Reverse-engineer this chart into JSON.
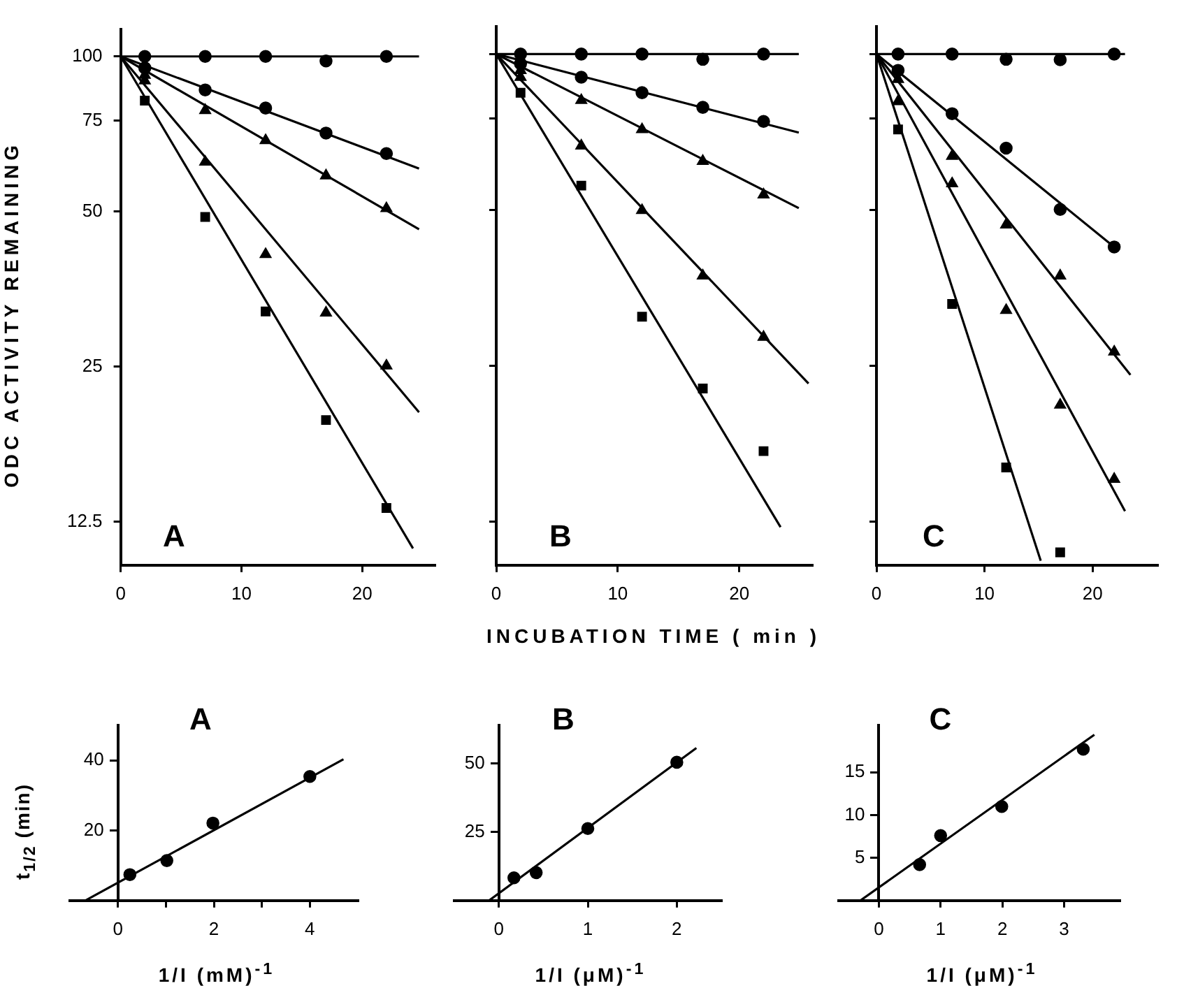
{
  "chart_data": [
    {
      "type": "scatter",
      "title": "A",
      "ylabel": "ODC ACTIVITY REMAINING",
      "log": "y",
      "xlim": [
        0,
        26
      ],
      "xticks": [
        0,
        10,
        20
      ],
      "ylim": [
        10.3,
        113
      ],
      "yticks": [
        100,
        75,
        50,
        25,
        12.5
      ],
      "grid": false,
      "series": [
        {
          "color": "#000000",
          "marker": "circle",
          "x": [
            2,
            7,
            12,
            17,
            22
          ],
          "values": [
            100,
            100,
            100,
            98,
            100
          ]
        },
        {
          "color": "#000000",
          "marker": "circle",
          "x": [
            2,
            7,
            12,
            17,
            22
          ],
          "values": [
            95,
            86.1,
            79.4,
            71,
            64.8
          ]
        },
        {
          "color": "#000000",
          "marker": "triangle",
          "x": [
            2,
            7,
            12,
            17,
            22
          ],
          "values": [
            92,
            78.6,
            68.7,
            58.7,
            50.7
          ]
        },
        {
          "color": "#000000",
          "marker": "triangle",
          "x": [
            2,
            7,
            12,
            17,
            22
          ],
          "values": [
            89.7,
            62.4,
            41.3,
            31.8,
            25.1
          ]
        },
        {
          "color": "#000000",
          "marker": "square",
          "x": [
            2,
            7,
            12,
            17,
            22
          ],
          "values": [
            82.1,
            48.8,
            32,
            19.7,
            13.3
          ]
        },
        {
          "type": "line",
          "color": "#000000",
          "marker": "none",
          "x": [
            0,
            24.7
          ],
          "values": [
            100,
            100
          ]
        },
        {
          "type": "line",
          "color": "#000000",
          "marker": "none",
          "x": [
            0,
            24.7
          ],
          "values": [
            100,
            60.6
          ]
        },
        {
          "type": "line",
          "color": "#000000",
          "marker": "none",
          "x": [
            0,
            24.7
          ],
          "values": [
            100,
            46.2
          ]
        },
        {
          "type": "line",
          "color": "#000000",
          "marker": "none",
          "x": [
            0,
            24.7
          ],
          "values": [
            100,
            20.4
          ]
        },
        {
          "type": "line",
          "color": "#000000",
          "marker": "none",
          "x": [
            0,
            24.2
          ],
          "values": [
            100,
            11.1
          ]
        }
      ]
    },
    {
      "type": "scatter",
      "title": "B",
      "xlabel": "INCUBATION TIME ( min )",
      "log": "y",
      "xlim": [
        0,
        26
      ],
      "xticks": [
        0,
        10,
        20
      ],
      "ylim": [
        10.3,
        113
      ],
      "yticks": [
        100,
        75,
        50,
        25,
        12.5
      ],
      "tick_labels": "x",
      "grid": false,
      "series": [
        {
          "color": "#000000",
          "marker": "circle",
          "x": [
            2,
            7,
            12,
            17,
            22
          ],
          "values": [
            100,
            100,
            100,
            97.7,
            100
          ]
        },
        {
          "color": "#000000",
          "marker": "circle",
          "x": [
            2,
            7,
            12,
            17,
            22
          ],
          "values": [
            95.8,
            90.2,
            84.2,
            78.9,
            74.1
          ]
        },
        {
          "color": "#000000",
          "marker": "triangle",
          "x": [
            2,
            7,
            12,
            17,
            22
          ],
          "values": [
            93,
            81.4,
            71.5,
            62.1,
            53.5
          ]
        },
        {
          "color": "#000000",
          "marker": "triangle",
          "x": [
            2,
            7,
            12,
            17,
            22
          ],
          "values": [
            90.2,
            66.5,
            49.9,
            37.3,
            28.4
          ]
        },
        {
          "color": "#000000",
          "marker": "square",
          "x": [
            2,
            7,
            12,
            17,
            22
          ],
          "values": [
            84.2,
            55.7,
            31.1,
            22.6,
            17.1
          ]
        },
        {
          "type": "line",
          "color": "#000000",
          "marker": "none",
          "x": [
            0,
            24.9
          ],
          "values": [
            100,
            100
          ]
        },
        {
          "type": "line",
          "color": "#000000",
          "marker": "none",
          "x": [
            0,
            24.9
          ],
          "values": [
            100,
            70.5
          ]
        },
        {
          "type": "line",
          "color": "#000000",
          "marker": "none",
          "x": [
            0,
            24.9
          ],
          "values": [
            100,
            50.4
          ]
        },
        {
          "type": "line",
          "color": "#000000",
          "marker": "none",
          "x": [
            0,
            25.7
          ],
          "values": [
            100,
            23.1
          ]
        },
        {
          "type": "line",
          "color": "#000000",
          "marker": "none",
          "x": [
            0,
            23.4
          ],
          "values": [
            100,
            12.2
          ]
        }
      ]
    },
    {
      "type": "scatter",
      "title": "C",
      "log": "y",
      "xlim": [
        0,
        26
      ],
      "xticks": [
        0,
        10,
        20
      ],
      "ylim": [
        10.3,
        113
      ],
      "yticks": [
        100,
        75,
        50,
        25,
        12.5
      ],
      "tick_labels": "x",
      "grid": false,
      "series": [
        {
          "color": "#000000",
          "marker": "circle",
          "x": [
            2,
            7,
            12,
            17,
            22
          ],
          "values": [
            100,
            100,
            97.7,
            97.5,
            100
          ]
        },
        {
          "color": "#000000",
          "marker": "circle",
          "x": [
            2,
            7,
            12,
            17,
            22
          ],
          "values": [
            93,
            76.7,
            65.8,
            50.1,
            42.4
          ]
        },
        {
          "color": "#000000",
          "marker": "triangle",
          "x": [
            2,
            7,
            12,
            17,
            22
          ],
          "values": [
            89.4,
            63.5,
            46.8,
            37.3,
            26.6
          ]
        },
        {
          "color": "#000000",
          "marker": "triangle",
          "x": [
            2,
            7,
            12,
            17,
            22
          ],
          "values": [
            81,
            56.2,
            32,
            21,
            15.1
          ]
        },
        {
          "color": "#000000",
          "marker": "square",
          "x": [
            2,
            7,
            12,
            17
          ],
          "values": [
            71.5,
            32.9,
            15.9,
            10.9
          ]
        },
        {
          "type": "line",
          "color": "#000000",
          "marker": "none",
          "x": [
            0,
            23
          ],
          "values": [
            100,
            100
          ]
        },
        {
          "type": "line",
          "color": "#000000",
          "marker": "none",
          "x": [
            0,
            22
          ],
          "values": [
            100,
            42.4
          ]
        },
        {
          "type": "line",
          "color": "#000000",
          "marker": "none",
          "x": [
            0,
            23.5
          ],
          "values": [
            100,
            24
          ]
        },
        {
          "type": "line",
          "color": "#000000",
          "marker": "none",
          "x": [
            0,
            23
          ],
          "values": [
            100,
            13.1
          ]
        },
        {
          "type": "line",
          "color": "#000000",
          "marker": "none",
          "x": [
            0,
            15.2
          ],
          "values": [
            100,
            10.5
          ]
        }
      ]
    },
    {
      "type": "scatter",
      "title": "A",
      "ylabel": "t$_{1/2}$ (min)",
      "xlabel": "1/I (mM)$^{-1}$",
      "xlim": [
        -1,
        5
      ],
      "xticks": [
        0,
        {
          "value": 1,
          "label": null
        },
        2,
        {
          "value": 3,
          "label": null
        },
        4
      ],
      "ylim": [
        0,
        50
      ],
      "yticks": [
        20,
        40
      ],
      "grid": false,
      "series": [
        {
          "color": "#000000",
          "marker": "circle",
          "x": [
            0.25,
            1.02,
            1.98,
            4
          ],
          "values": [
            7.4,
            11.4,
            22.1,
            35.4
          ]
        },
        {
          "type": "line",
          "color": "#000000",
          "marker": "none",
          "x": [
            -0.68,
            4.7
          ],
          "values": [
            0,
            40.3
          ]
        }
      ]
    },
    {
      "type": "scatter",
      "title": "B",
      "xlabel": "1/I (μM)$^{-1}$",
      "xlim": [
        -0.5,
        2.5
      ],
      "xticks": [
        0,
        1,
        2
      ],
      "ylim": [
        0,
        64
      ],
      "yticks": [
        25,
        50
      ],
      "grid": false,
      "series": [
        {
          "color": "#000000",
          "marker": "circle",
          "x": [
            0.17,
            0.42,
            1,
            2
          ],
          "values": [
            8.3,
            10.2,
            26.3,
            50.5
          ]
        },
        {
          "type": "line",
          "color": "#000000",
          "marker": "none",
          "x": [
            -0.11,
            2.22
          ],
          "values": [
            0,
            55.7
          ]
        }
      ]
    },
    {
      "type": "scatter",
      "title": "C",
      "xlabel": "1/I (μM)$^{-1}$",
      "xlim": [
        -0.65,
        3.9
      ],
      "xticks": [
        0,
        1,
        2,
        3
      ],
      "ylim": [
        0,
        20.5
      ],
      "yticks": [
        5,
        10,
        15
      ],
      "grid": false,
      "series": [
        {
          "color": "#000000",
          "marker": "circle",
          "x": [
            0.66,
            1,
            1.99,
            3.31
          ],
          "values": [
            4.2,
            7.6,
            11,
            17.7
          ]
        },
        {
          "type": "line",
          "color": "#000000",
          "marker": "none",
          "x": [
            -0.3,
            3.49
          ],
          "values": [
            0,
            19.4
          ]
        }
      ]
    }
  ]
}
